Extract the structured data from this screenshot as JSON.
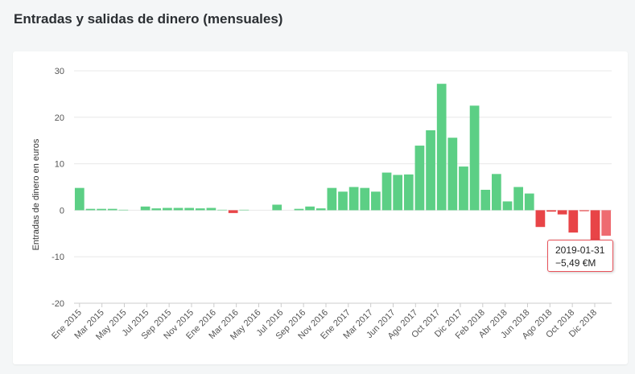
{
  "page": {
    "title": "Entradas y salidas de dinero (mensuales)"
  },
  "colors": {
    "positive": "#5ccf85",
    "negative": "#e84447",
    "highlight": "#ee6b70",
    "grid": "#e8e8e8"
  },
  "tooltip": {
    "date": "2019-01-31",
    "value": "−5,49 €M"
  },
  "chart_data": {
    "type": "bar",
    "ylabel": "Entradas de dinero en euros",
    "ylim": [
      -20,
      30
    ],
    "yticks": [
      30,
      20,
      10,
      0,
      -10,
      -20
    ],
    "grid": true,
    "highlighted_index": 48,
    "x_tick_labels": [
      "Ene 2015",
      "Mar 2015",
      "May 2015",
      "Jul 2015",
      "Sep 2015",
      "Nov 2015",
      "Ene 2016",
      "Mar 2016",
      "May 2016",
      "Jul 2016",
      "Sep 2016",
      "Nov 2016",
      "Ene 2017",
      "Mar 2017",
      "Jun 2017",
      "Ago 2017",
      "Oct 2017",
      "Dic 2017",
      "Feb 2018",
      "Abr 2018",
      "Jun 2018",
      "Ago 2018",
      "Oct 2018",
      "Dic 2018"
    ],
    "values": [
      4.8,
      0.3,
      0.3,
      0.3,
      0.1,
      0.0,
      0.8,
      0.4,
      0.5,
      0.5,
      0.5,
      0.4,
      0.5,
      0.1,
      -0.6,
      0.1,
      0.0,
      0.0,
      1.2,
      0.0,
      0.3,
      0.8,
      0.4,
      4.8,
      4.0,
      5.0,
      4.8,
      4.0,
      8.1,
      7.6,
      7.7,
      13.9,
      17.2,
      27.2,
      15.6,
      9.4,
      22.5,
      4.4,
      7.8,
      1.9,
      5.0,
      3.6,
      -3.6,
      -0.3,
      -0.9,
      -4.8,
      -0.2,
      -6.5,
      -5.49
    ]
  }
}
